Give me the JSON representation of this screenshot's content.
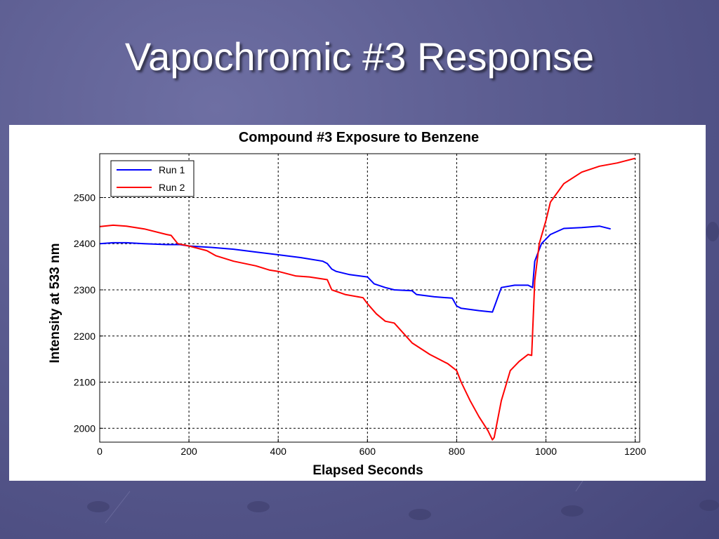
{
  "slide": {
    "title": "Vapochromic #3 Response"
  },
  "colors": {
    "background": "#5a5b8f",
    "run1": "#0000ff",
    "run2": "#ff0000"
  },
  "chart_data": {
    "type": "line",
    "title": "Compound #3 Exposure to Benzene",
    "xlabel": "Elapsed Seconds",
    "ylabel": "Intensity at 533 nm",
    "xlim": [
      0,
      1210
    ],
    "ylim": [
      1970,
      2595
    ],
    "xticks": [
      0,
      200,
      400,
      600,
      800,
      1000,
      1200
    ],
    "yticks": [
      2000,
      2100,
      2200,
      2300,
      2400,
      2500
    ],
    "grid": true,
    "legend_position": "top-left",
    "series": [
      {
        "name": "Run 1",
        "color": "#0000ff",
        "x": [
          0,
          30,
          60,
          100,
          150,
          180,
          200,
          250,
          300,
          350,
          400,
          450,
          500,
          510,
          520,
          530,
          560,
          600,
          615,
          640,
          660,
          700,
          710,
          750,
          790,
          800,
          810,
          850,
          880,
          885,
          900,
          930,
          960,
          970,
          975,
          990,
          1010,
          1040,
          1080,
          1120,
          1145
        ],
        "y": [
          2400,
          2402,
          2402,
          2400,
          2398,
          2398,
          2395,
          2392,
          2388,
          2382,
          2376,
          2370,
          2362,
          2357,
          2345,
          2340,
          2333,
          2328,
          2313,
          2305,
          2300,
          2298,
          2290,
          2285,
          2282,
          2265,
          2260,
          2255,
          2252,
          2265,
          2305,
          2310,
          2310,
          2305,
          2362,
          2400,
          2420,
          2433,
          2435,
          2438,
          2432
        ]
      },
      {
        "name": "Run 2",
        "color": "#ff0000",
        "x": [
          0,
          30,
          60,
          100,
          150,
          160,
          175,
          200,
          240,
          260,
          300,
          350,
          380,
          400,
          440,
          470,
          510,
          520,
          550,
          590,
          600,
          620,
          640,
          660,
          700,
          740,
          780,
          800,
          810,
          830,
          850,
          870,
          880,
          884,
          900,
          920,
          940,
          960,
          968,
          975,
          985,
          1000,
          1010,
          1040,
          1080,
          1120,
          1160,
          1200
        ],
        "y": [
          2437,
          2440,
          2438,
          2432,
          2420,
          2418,
          2400,
          2395,
          2385,
          2374,
          2362,
          2352,
          2343,
          2340,
          2330,
          2328,
          2322,
          2300,
          2290,
          2283,
          2270,
          2248,
          2232,
          2228,
          2185,
          2160,
          2140,
          2125,
          2100,
          2060,
          2025,
          1995,
          1975,
          1980,
          2060,
          2125,
          2145,
          2160,
          2158,
          2320,
          2400,
          2450,
          2490,
          2530,
          2555,
          2568,
          2575,
          2585
        ]
      }
    ]
  }
}
